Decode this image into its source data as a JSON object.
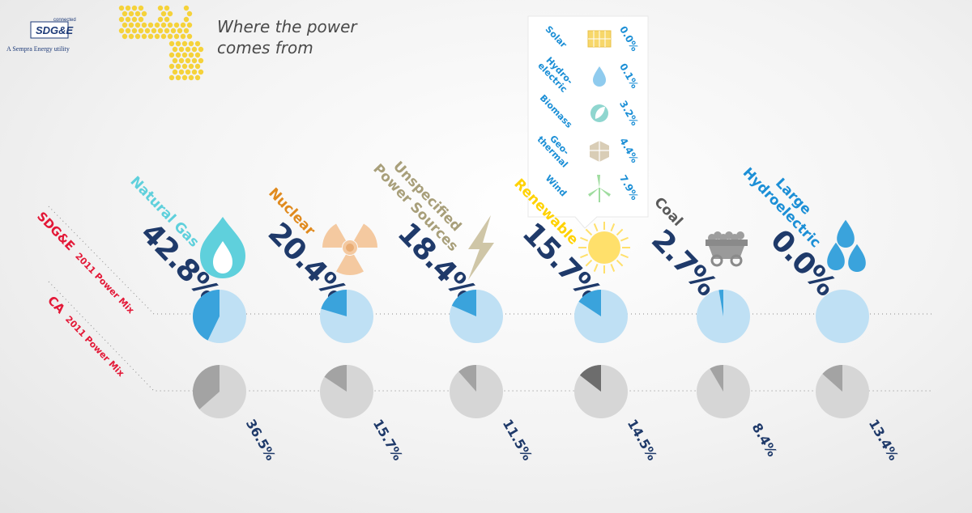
{
  "logo": {
    "brand": "SDG&E",
    "tag": "connected",
    "sub": "A Sempra Energy utility"
  },
  "title": {
    "line1": "Where the power",
    "line2": "comes from"
  },
  "rows": {
    "sdge_main": "SDG&E",
    "sdge_sub": "2011 Power Mix",
    "ca_main": "CA",
    "ca_sub": "2011 Power Mix"
  },
  "colors": {
    "sdge_fill": "#3aa3dc",
    "sdge_bg": "#bfe0f4",
    "ca_fill": "#a3a3a3",
    "ca_fill_dark": "#6d6d6d",
    "ca_bg": "#d6d6d6",
    "title_red": "#e31837",
    "value_navy": "#1f3a6a"
  },
  "chart_data": {
    "type": "pie",
    "categories": [
      "Natural Gas",
      "Nuclear",
      "Unspecified Power Sources",
      "Renewable",
      "Coal",
      "Large Hydroelectric"
    ],
    "category_colors": [
      "#5fd0dc",
      "#e08a1e",
      "#a89f7a",
      "#ffd200",
      "#5b5b5b",
      "#1c8fd6"
    ],
    "category_icons": [
      "flame-icon",
      "radiation-icon",
      "lightning-icon",
      "sun-icon",
      "mine-cart-icon",
      "water-drops-icon"
    ],
    "series": [
      {
        "name": "SDG&E 2011 Power Mix",
        "values": [
          42.8,
          20.4,
          18.4,
          15.7,
          2.7,
          0.0
        ],
        "labels": [
          "42.8%",
          "20.4%",
          "18.4%",
          "15.7%",
          "2.7%",
          "0.0%"
        ]
      },
      {
        "name": "CA 2011 Power Mix",
        "values": [
          36.5,
          15.7,
          11.5,
          14.5,
          8.4,
          13.4
        ],
        "labels": [
          "36.5%",
          "15.7%",
          "11.5%",
          "14.5%",
          "8.4%",
          "13.4%"
        ]
      }
    ],
    "renewable_breakdown": [
      {
        "name": "Solar",
        "value": 0.0,
        "label": "0.0%",
        "icon": "solar-panel-icon"
      },
      {
        "name": "Hydro-electric",
        "value": 0.1,
        "label": "0.1%",
        "icon": "water-drop-icon"
      },
      {
        "name": "Biomass",
        "value": 3.2,
        "label": "3.2%",
        "icon": "leaf-icon"
      },
      {
        "name": "Geo-thermal",
        "value": 4.4,
        "label": "4.4%",
        "icon": "rock-layers-icon"
      },
      {
        "name": "Wind",
        "value": 7.9,
        "label": "7.9%",
        "icon": "wind-turbine-icon"
      }
    ]
  }
}
